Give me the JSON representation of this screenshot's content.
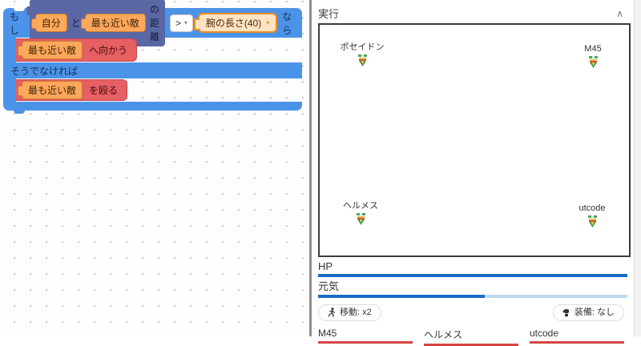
{
  "colors": {
    "if_block_blue": "#4b93e8",
    "condition_block_indigo": "#5b67a5",
    "value_block_orange": "#ffa85c",
    "threshold_border_orange": "#f08c1f",
    "action_block_red": "#e55f63",
    "hp_bar_blue": "#1b6ac9",
    "stamina_track_blue": "#bcd9f0",
    "enemy_bar_red": "#d64541"
  },
  "icons": {
    "dropdown": "▾",
    "collapse": "∧"
  },
  "blockly": {
    "if_label": "もし",
    "then_label": "なら",
    "condition": {
      "self": "自分",
      "conj": "と",
      "enemy": "最も近い敵",
      "suffix": "の距離",
      "operator": ">",
      "threshold": "腕の長さ(40)"
    },
    "then_stmt": {
      "target": "最も近い敵",
      "action": "へ向かう"
    },
    "else_label": "そうでなければ",
    "else_stmt": {
      "target": "最も近い敵",
      "action": "を殴る"
    }
  },
  "panel": {
    "title": "実行",
    "entities": [
      {
        "name": "ポセイドン"
      },
      {
        "name": "M45"
      },
      {
        "name": "ヘルメス"
      },
      {
        "name": "utcode"
      }
    ],
    "stats": [
      {
        "label": "HP",
        "percent": 100
      },
      {
        "label": "元気",
        "percent": 54
      }
    ],
    "badges": {
      "move": {
        "label": "移動: x2"
      },
      "equipment": {
        "label": "装備: なし"
      }
    },
    "enemies": [
      {
        "name": "M45",
        "hp_percent": 100
      },
      {
        "name": "ヘルメス",
        "hp_percent": 100
      },
      {
        "name": "utcode",
        "hp_percent": 100
      }
    ]
  }
}
